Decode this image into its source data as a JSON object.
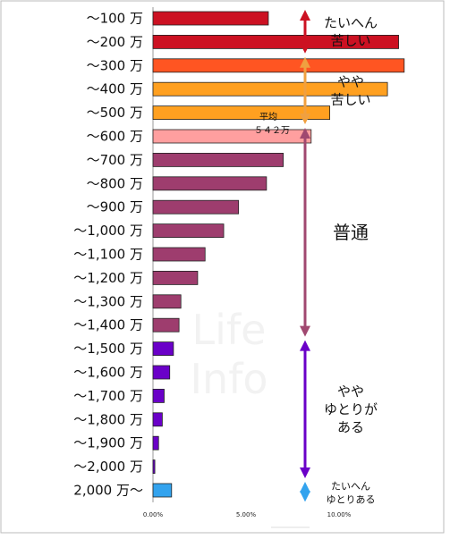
{
  "chart_data": {
    "type": "bar",
    "orientation": "horizontal",
    "categories": [
      "～100 万",
      "～200 万",
      "～300 万",
      "～400 万",
      "～500 万",
      "～600 万",
      "～700 万",
      "～800 万",
      "～900 万",
      "～1,000 万",
      "～1,100 万",
      "～1,200 万",
      "～1,300 万",
      "～1,400 万",
      "～1,500 万",
      "～1,600 万",
      "～1,700 万",
      "～1,800 万",
      "～1,900 万",
      "～2,000 万",
      "2,000 万～"
    ],
    "values": [
      6.2,
      13.2,
      13.5,
      12.6,
      9.5,
      8.5,
      7.0,
      6.1,
      4.6,
      3.8,
      2.8,
      2.4,
      1.5,
      1.4,
      1.1,
      0.9,
      0.6,
      0.5,
      0.3,
      0.1,
      1.0
    ],
    "bar_colors": [
      "#cc1122",
      "#cc1122",
      "#ff5522",
      "#ffa020",
      "#ffa020",
      "#ff9f9f",
      "#9e3d6e",
      "#9e3d6e",
      "#9e3d6e",
      "#9e3d6e",
      "#9e3d6e",
      "#9e3d6e",
      "#9e3d6e",
      "#9e3d6e",
      "#6a00c8",
      "#6a00c8",
      "#6a00c8",
      "#6a00c8",
      "#6a00c8",
      "#6a00c8",
      "#33a3ee"
    ],
    "x_ticks": [
      "0.00%",
      "5.00%",
      "10.00%"
    ],
    "xlim": [
      0,
      15
    ],
    "average": {
      "label": "平均",
      "value_text": "５４２万"
    },
    "groups": [
      {
        "label_lines": [
          "たいへん",
          "苦しい"
        ],
        "from": 0,
        "to": 2,
        "color": "#cc1122",
        "size": "m"
      },
      {
        "label_lines": [
          "やや",
          "苦しい"
        ],
        "from": 2,
        "to": 5,
        "color": "#f0a040",
        "size": "m"
      },
      {
        "label_lines": [
          "普通"
        ],
        "from": 5,
        "to": 14,
        "color": "#a04870",
        "size": "l"
      },
      {
        "label_lines": [
          "やや",
          "ゆとりが",
          "ある"
        ],
        "from": 14,
        "to": 20,
        "color": "#6a00c8",
        "size": "m"
      },
      {
        "label_lines": [
          "たいへん",
          "ゆとりある"
        ],
        "from": 20,
        "to": 21,
        "color": "#33a3ee",
        "size": "s"
      }
    ],
    "watermark_lines": [
      "Life",
      "Info"
    ]
  }
}
